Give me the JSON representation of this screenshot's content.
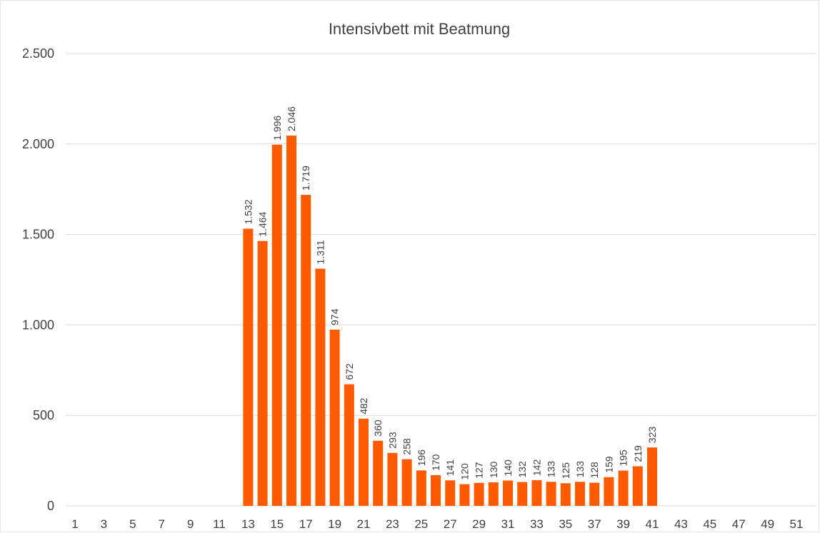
{
  "chart_data": {
    "type": "bar",
    "title": "Intensivbett  mit Beatmung",
    "xlabel": "",
    "ylabel": "",
    "ylim": [
      0,
      2500
    ],
    "y_ticks": [
      {
        "value": 0,
        "label": "0"
      },
      {
        "value": 500,
        "label": "500"
      },
      {
        "value": 1000,
        "label": "1.000"
      },
      {
        "value": 1500,
        "label": "1.500"
      },
      {
        "value": 2000,
        "label": "2.000"
      },
      {
        "value": 2500,
        "label": "2.500"
      }
    ],
    "grid": true,
    "legend": "none",
    "bar_color": "#ff5a00",
    "x_tick_labels": [
      "1",
      "3",
      "5",
      "7",
      "9",
      "11",
      "13",
      "15",
      "17",
      "19",
      "21",
      "23",
      "25",
      "27",
      "29",
      "31",
      "33",
      "35",
      "37",
      "39",
      "41",
      "43",
      "45",
      "47",
      "49",
      "51"
    ],
    "x": [
      13,
      14,
      15,
      16,
      17,
      18,
      19,
      20,
      21,
      22,
      23,
      24,
      25,
      26,
      27,
      28,
      29,
      30,
      31,
      32,
      33,
      34,
      35,
      36,
      37,
      38,
      39,
      40,
      41
    ],
    "values": [
      1532,
      1464,
      1996,
      2046,
      1719,
      1311,
      974,
      672,
      482,
      360,
      293,
      258,
      196,
      170,
      141,
      120,
      127,
      130,
      140,
      132,
      142,
      133,
      125,
      133,
      128,
      159,
      195,
      219,
      323
    ],
    "data_labels": [
      "1.532",
      "1.464",
      "1.996",
      "2.046",
      "1.719",
      "1.311",
      "974",
      "672",
      "482",
      "360",
      "293",
      "258",
      "196",
      "170",
      "141",
      "120",
      "127",
      "130",
      "140",
      "132",
      "142",
      "133",
      "125",
      "133",
      "128",
      "159",
      "195",
      "219",
      "323"
    ]
  }
}
